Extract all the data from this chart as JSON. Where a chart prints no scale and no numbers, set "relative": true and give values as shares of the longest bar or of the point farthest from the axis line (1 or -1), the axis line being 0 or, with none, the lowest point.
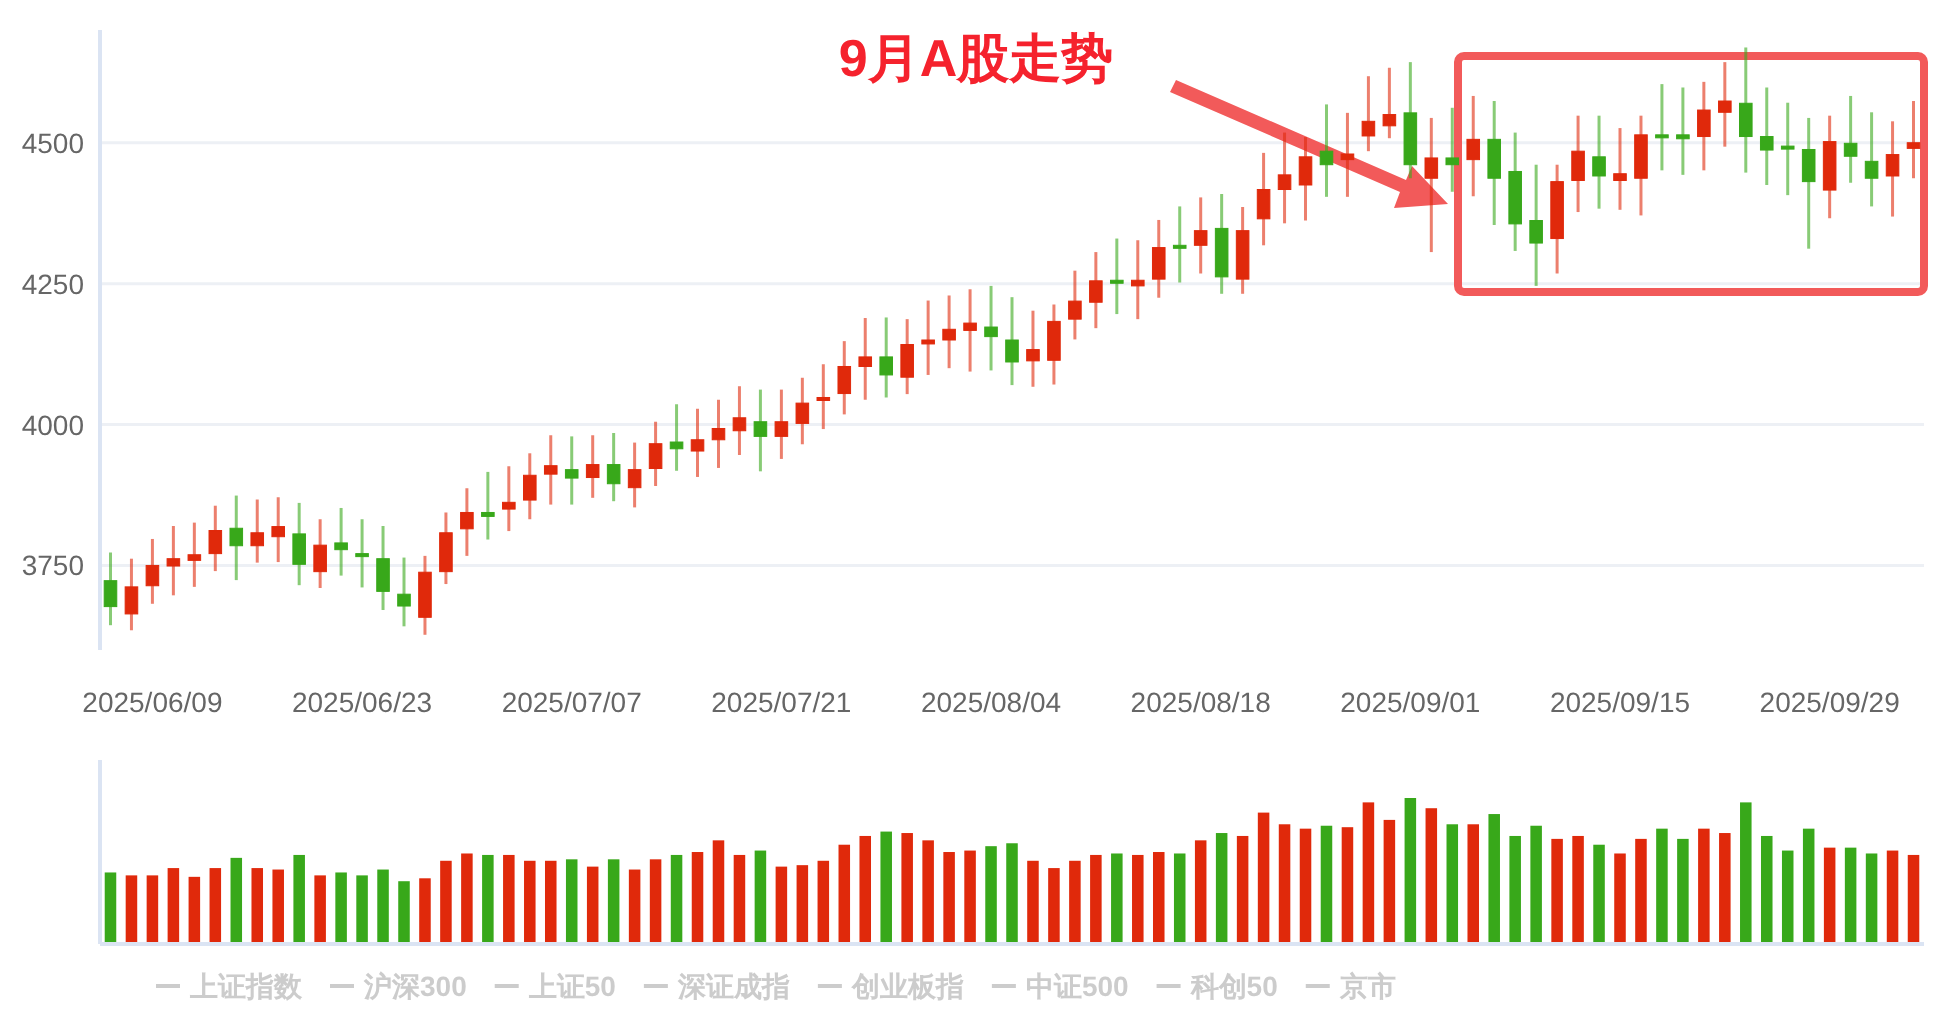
{
  "chart_data": [
    {
      "type": "candlestick",
      "categories": [
        null,
        null,
        "2025/06/09",
        null,
        null,
        null,
        null,
        null,
        null,
        null,
        null,
        null,
        "2025/06/23",
        null,
        null,
        null,
        null,
        null,
        null,
        null,
        null,
        null,
        "2025/07/07",
        null,
        null,
        null,
        null,
        null,
        null,
        null,
        null,
        null,
        "2025/07/21",
        null,
        null,
        null,
        null,
        null,
        null,
        null,
        null,
        null,
        "2025/08/04",
        null,
        null,
        null,
        null,
        null,
        null,
        null,
        null,
        null,
        "2025/08/18",
        null,
        null,
        null,
        null,
        null,
        null,
        null,
        null,
        null,
        "2025/09/01",
        null,
        null,
        null,
        null,
        null,
        null,
        null,
        null,
        null,
        "2025/09/15",
        null,
        null,
        null,
        null,
        null,
        null,
        null,
        null,
        null,
        "2025/09/29",
        null,
        null,
        null,
        null
      ],
      "ohlc": [
        [
          3723,
          3773,
          3644,
          3677
        ],
        [
          3664,
          3762,
          3635,
          3712
        ],
        [
          3714,
          3797,
          3682,
          3750
        ],
        [
          3749,
          3820,
          3697,
          3762
        ],
        [
          3759,
          3826,
          3712,
          3769
        ],
        [
          3771,
          3856,
          3740,
          3812
        ],
        [
          3816,
          3874,
          3724,
          3785
        ],
        [
          3785,
          3867,
          3755,
          3808
        ],
        [
          3801,
          3871,
          3756,
          3819
        ],
        [
          3806,
          3861,
          3715,
          3752
        ],
        [
          3739,
          3832,
          3710,
          3786
        ],
        [
          3790,
          3852,
          3732,
          3778
        ],
        [
          3771,
          3832,
          3711,
          3769
        ],
        [
          3762,
          3820,
          3671,
          3704
        ],
        [
          3699,
          3764,
          3642,
          3678
        ],
        [
          3658,
          3767,
          3627,
          3738
        ],
        [
          3739,
          3844,
          3717,
          3808
        ],
        [
          3815,
          3887,
          3767,
          3844
        ],
        [
          3844,
          3916,
          3796,
          3837
        ],
        [
          3850,
          3926,
          3811,
          3862
        ],
        [
          3866,
          3949,
          3832,
          3910
        ],
        [
          3912,
          3981,
          3858,
          3927
        ],
        [
          3920,
          3979,
          3858,
          3905
        ],
        [
          3906,
          3981,
          3870,
          3929
        ],
        [
          3929,
          3985,
          3864,
          3895
        ],
        [
          3888,
          3968,
          3853,
          3920
        ],
        [
          3922,
          4005,
          3891,
          3966
        ],
        [
          3969,
          4036,
          3918,
          3957
        ],
        [
          3953,
          4028,
          3907,
          3973
        ],
        [
          3973,
          4044,
          3923,
          3993
        ],
        [
          3989,
          4068,
          3946,
          4012
        ],
        [
          4005,
          4062,
          3917,
          3979
        ],
        [
          3979,
          4062,
          3939,
          4005
        ],
        [
          4002,
          4083,
          3965,
          4038
        ],
        [
          4043,
          4107,
          3992,
          4048
        ],
        [
          4055,
          4148,
          4018,
          4103
        ],
        [
          4103,
          4189,
          4044,
          4120
        ],
        [
          4120,
          4190,
          4048,
          4088
        ],
        [
          4084,
          4187,
          4054,
          4142
        ],
        [
          4143,
          4220,
          4088,
          4150
        ],
        [
          4150,
          4229,
          4100,
          4169
        ],
        [
          4167,
          4240,
          4094,
          4180
        ],
        [
          4173,
          4246,
          4096,
          4156
        ],
        [
          4150,
          4226,
          4070,
          4111
        ],
        [
          4113,
          4202,
          4067,
          4133
        ],
        [
          4114,
          4213,
          4071,
          4183
        ],
        [
          4187,
          4273,
          4151,
          4219
        ],
        [
          4217,
          4306,
          4171,
          4255
        ],
        [
          4256,
          4330,
          4196,
          4251
        ],
        [
          4246,
          4327,
          4187,
          4256
        ],
        [
          4258,
          4363,
          4225,
          4314
        ],
        [
          4318,
          4387,
          4252,
          4313
        ],
        [
          4318,
          4403,
          4268,
          4344
        ],
        [
          4348,
          4409,
          4232,
          4262
        ],
        [
          4258,
          4386,
          4232,
          4344
        ],
        [
          4365,
          4482,
          4318,
          4417
        ],
        [
          4417,
          4518,
          4357,
          4443
        ],
        [
          4425,
          4510,
          4362,
          4475
        ],
        [
          4485,
          4568,
          4404,
          4461
        ],
        [
          4470,
          4553,
          4404,
          4480
        ],
        [
          4512,
          4618,
          4485,
          4538
        ],
        [
          4530,
          4633,
          4508,
          4550
        ],
        [
          4553,
          4643,
          4437,
          4461
        ],
        [
          4437,
          4544,
          4306,
          4473
        ],
        [
          4473,
          4562,
          4413,
          4461
        ],
        [
          4470,
          4583,
          4405,
          4506
        ],
        [
          4506,
          4574,
          4354,
          4437
        ],
        [
          4449,
          4518,
          4308,
          4356
        ],
        [
          4362,
          4461,
          4246,
          4322
        ],
        [
          4330,
          4461,
          4268,
          4431
        ],
        [
          4433,
          4548,
          4377,
          4485
        ],
        [
          4475,
          4548,
          4383,
          4441
        ],
        [
          4433,
          4526,
          4381,
          4445
        ],
        [
          4437,
          4548,
          4371,
          4514
        ],
        [
          4514,
          4604,
          4451,
          4510
        ],
        [
          4514,
          4598,
          4443,
          4507
        ],
        [
          4511,
          4608,
          4451,
          4558
        ],
        [
          4554,
          4643,
          4493,
          4574
        ],
        [
          4570,
          4669,
          4447,
          4511
        ],
        [
          4511,
          4598,
          4425,
          4487
        ],
        [
          4494,
          4571,
          4407,
          4491
        ],
        [
          4488,
          4544,
          4312,
          4431
        ],
        [
          4416,
          4548,
          4366,
          4502
        ],
        [
          4499,
          4583,
          4429,
          4476
        ],
        [
          4467,
          4554,
          4387,
          4437
        ],
        [
          4441,
          4538,
          4369,
          4479
        ],
        [
          4490,
          4574,
          4437,
          4500
        ]
      ],
      "colors": [
        "#38a81a",
        "#e0290b",
        "#e0290b",
        "#e0290b",
        "#e0290b",
        "#e0290b",
        "#38a81a",
        "#e0290b",
        "#e0290b",
        "#38a81a",
        "#e0290b",
        "#38a81a",
        "#38a81a",
        "#38a81a",
        "#38a81a",
        "#e0290b",
        "#e0290b",
        "#e0290b",
        "#38a81a",
        "#e0290b",
        "#e0290b",
        "#e0290b",
        "#38a81a",
        "#e0290b",
        "#38a81a",
        "#e0290b",
        "#e0290b",
        "#38a81a",
        "#e0290b",
        "#e0290b",
        "#e0290b",
        "#38a81a",
        "#e0290b",
        "#e0290b",
        "#e0290b",
        "#e0290b",
        "#e0290b",
        "#38a81a",
        "#e0290b",
        "#e0290b",
        "#e0290b",
        "#e0290b",
        "#38a81a",
        "#38a81a",
        "#e0290b",
        "#e0290b",
        "#e0290b",
        "#e0290b",
        "#38a81a",
        "#e0290b",
        "#e0290b",
        "#38a81a",
        "#e0290b",
        "#38a81a",
        "#e0290b",
        "#e0290b",
        "#e0290b",
        "#e0290b",
        "#38a81a",
        "#e0290b",
        "#e0290b",
        "#e0290b",
        "#38a81a",
        "#e0290b",
        "#38a81a",
        "#e0290b",
        "#38a81a",
        "#38a81a",
        "#38a81a",
        "#e0290b",
        "#e0290b",
        "#38a81a",
        "#e0290b",
        "#e0290b",
        "#38a81a",
        "#38a81a",
        "#e0290b",
        "#e0290b",
        "#38a81a",
        "#38a81a",
        "#38a81a",
        "#38a81a",
        "#e0290b",
        "#38a81a",
        "#38a81a",
        "#e0290b",
        "#e0290b"
      ],
      "ylim": [
        3600,
        4700
      ],
      "yticks": [
        3750,
        4000,
        4250,
        4500
      ],
      "grid": "y",
      "annotations": [
        "9月A股走势"
      ],
      "series": [
        {
          "name": "上证指数",
          "color": "#cccccc",
          "type": "line",
          "values": [
            null,
            null,
            null,
            null,
            null,
            null,
            null,
            null,
            null,
            null,
            null,
            null,
            null,
            null,
            null,
            null,
            null,
            null,
            null,
            null,
            null,
            null,
            null,
            null,
            null,
            null,
            null,
            null,
            null,
            null,
            null,
            null,
            null,
            null,
            null,
            null,
            null,
            null,
            null,
            null,
            null,
            null,
            null,
            null,
            null,
            null,
            null,
            null,
            null,
            null,
            null,
            null,
            null,
            null,
            null,
            null,
            null,
            null,
            null,
            null,
            null,
            null,
            null,
            null,
            null,
            null,
            null,
            null,
            null,
            null,
            null,
            null,
            null,
            null,
            null,
            null,
            null,
            null,
            null,
            null,
            null,
            null,
            null,
            null,
            null,
            null,
            null
          ]
        },
        {
          "name": "沪深300",
          "color": "#cccccc",
          "type": "line",
          "values": [
            null,
            null,
            null,
            null,
            null,
            null,
            null,
            null,
            null,
            null,
            null,
            null,
            null,
            null,
            null,
            null,
            null,
            null,
            null,
            null,
            null,
            null,
            null,
            null,
            null,
            null,
            null,
            null,
            null,
            null,
            null,
            null,
            null,
            null,
            null,
            null,
            null,
            null,
            null,
            null,
            null,
            null,
            null,
            null,
            null,
            null,
            null,
            null,
            null,
            null,
            null,
            null,
            null,
            null,
            null,
            null,
            null,
            null,
            null,
            null,
            null,
            null,
            null,
            null,
            null,
            null,
            null,
            null,
            null,
            null,
            null,
            null,
            null,
            null,
            null,
            null,
            null,
            null,
            null,
            null,
            null,
            null,
            null,
            null,
            null,
            null,
            null
          ]
        },
        {
          "name": "上证50",
          "color": "#cccccc",
          "type": "line",
          "values": [
            null,
            null,
            null,
            null,
            null,
            null,
            null,
            null,
            null,
            null,
            null,
            null,
            null,
            null,
            null,
            null,
            null,
            null,
            null,
            null,
            null,
            null,
            null,
            null,
            null,
            null,
            null,
            null,
            null,
            null,
            null,
            null,
            null,
            null,
            null,
            null,
            null,
            null,
            null,
            null,
            null,
            null,
            null,
            null,
            null,
            null,
            null,
            null,
            null,
            null,
            null,
            null,
            null,
            null,
            null,
            null,
            null,
            null,
            null,
            null,
            null,
            null,
            null,
            null,
            null,
            null,
            null,
            null,
            null,
            null,
            null,
            null,
            null,
            null,
            null,
            null,
            null,
            null,
            null,
            null,
            null,
            null,
            null,
            null,
            null,
            null,
            null
          ]
        },
        {
          "name": "深证成指",
          "color": "#cccccc",
          "type": "line",
          "values": [
            null,
            null,
            null,
            null,
            null,
            null,
            null,
            null,
            null,
            null,
            null,
            null,
            null,
            null,
            null,
            null,
            null,
            null,
            null,
            null,
            null,
            null,
            null,
            null,
            null,
            null,
            null,
            null,
            null,
            null,
            null,
            null,
            null,
            null,
            null,
            null,
            null,
            null,
            null,
            null,
            null,
            null,
            null,
            null,
            null,
            null,
            null,
            null,
            null,
            null,
            null,
            null,
            null,
            null,
            null,
            null,
            null,
            null,
            null,
            null,
            null,
            null,
            null,
            null,
            null,
            null,
            null,
            null,
            null,
            null,
            null,
            null,
            null,
            null,
            null,
            null,
            null,
            null,
            null,
            null,
            null,
            null,
            null,
            null,
            null,
            null,
            null
          ]
        },
        {
          "name": "创业板指",
          "color": "#cccccc",
          "type": "line",
          "values": [
            null,
            null,
            null,
            null,
            null,
            null,
            null,
            null,
            null,
            null,
            null,
            null,
            null,
            null,
            null,
            null,
            null,
            null,
            null,
            null,
            null,
            null,
            null,
            null,
            null,
            null,
            null,
            null,
            null,
            null,
            null,
            null,
            null,
            null,
            null,
            null,
            null,
            null,
            null,
            null,
            null,
            null,
            null,
            null,
            null,
            null,
            null,
            null,
            null,
            null,
            null,
            null,
            null,
            null,
            null,
            null,
            null,
            null,
            null,
            null,
            null,
            null,
            null,
            null,
            null,
            null,
            null,
            null,
            null,
            null,
            null,
            null,
            null,
            null,
            null,
            null,
            null,
            null,
            null,
            null,
            null,
            null,
            null,
            null,
            null,
            null,
            null
          ]
        },
        {
          "name": "中证500",
          "color": "#cccccc",
          "type": "line",
          "values": [
            null,
            null,
            null,
            null,
            null,
            null,
            null,
            null,
            null,
            null,
            null,
            null,
            null,
            null,
            null,
            null,
            null,
            null,
            null,
            null,
            null,
            null,
            null,
            null,
            null,
            null,
            null,
            null,
            null,
            null,
            null,
            null,
            null,
            null,
            null,
            null,
            null,
            null,
            null,
            null,
            null,
            null,
            null,
            null,
            null,
            null,
            null,
            null,
            null,
            null,
            null,
            null,
            null,
            null,
            null,
            null,
            null,
            null,
            null,
            null,
            null,
            null,
            null,
            null,
            null,
            null,
            null,
            null,
            null,
            null,
            null,
            null,
            null,
            null,
            null,
            null,
            null,
            null,
            null,
            null,
            null,
            null,
            null,
            null,
            null,
            null,
            null
          ]
        },
        {
          "name": "科创50",
          "color": "#cccccc",
          "type": "line",
          "values": [
            null,
            null,
            null,
            null,
            null,
            null,
            null,
            null,
            null,
            null,
            null,
            null,
            null,
            null,
            null,
            null,
            null,
            null,
            null,
            null,
            null,
            null,
            null,
            null,
            null,
            null,
            null,
            null,
            null,
            null,
            null,
            null,
            null,
            null,
            null,
            null,
            null,
            null,
            null,
            null,
            null,
            null,
            null,
            null,
            null,
            null,
            null,
            null,
            null,
            null,
            null,
            null,
            null,
            null,
            null,
            null,
            null,
            null,
            null,
            null,
            null,
            null,
            null,
            null,
            null,
            null,
            null,
            null,
            null,
            null,
            null,
            null,
            null,
            null,
            null,
            null,
            null,
            null,
            null,
            null,
            null,
            null,
            null,
            null,
            null,
            null,
            null
          ]
        },
        {
          "name": "京市",
          "color": "#cccccc",
          "type": "line",
          "values": [
            null,
            null,
            null,
            null,
            null,
            null,
            null,
            null,
            null,
            null,
            null,
            null,
            null,
            null,
            null,
            null,
            null,
            null,
            null,
            null,
            null,
            null,
            null,
            null,
            null,
            null,
            null,
            null,
            null,
            null,
            null,
            null,
            null,
            null,
            null,
            null,
            null,
            null,
            null,
            null,
            null,
            null,
            null,
            null,
            null,
            null,
            null,
            null,
            null,
            null,
            null,
            null,
            null,
            null,
            null,
            null,
            null,
            null,
            null,
            null,
            null,
            null,
            null,
            null,
            null,
            null,
            null,
            null,
            null,
            null,
            null,
            null,
            null,
            null,
            null,
            null,
            null,
            null,
            null,
            null,
            null,
            null,
            null,
            null,
            null,
            null,
            null
          ]
        }
      ],
      "legend": "bottom"
    },
    {
      "type": "bar",
      "relative": true,
      "categories": [
        null,
        null,
        null,
        null,
        null,
        null,
        null,
        null,
        null,
        null,
        null,
        null,
        null,
        null,
        null,
        null,
        null,
        null,
        null,
        null,
        null,
        null,
        null,
        null,
        null,
        null,
        null,
        null,
        null,
        null,
        null,
        null,
        null,
        null,
        null,
        null,
        null,
        null,
        null,
        null,
        null,
        null,
        null,
        null,
        null,
        null,
        null,
        null,
        null,
        null,
        null,
        null,
        null,
        null,
        null,
        null,
        null,
        null,
        null,
        null,
        null,
        null,
        null,
        null,
        null,
        null,
        null,
        null,
        null,
        null,
        null,
        null,
        null,
        null,
        null,
        null,
        null,
        null,
        null,
        null,
        null,
        null,
        null,
        null,
        null,
        null,
        null
      ],
      "values": [
        0.49,
        0.47,
        0.47,
        0.52,
        0.46,
        0.52,
        0.59,
        0.52,
        0.51,
        0.61,
        0.47,
        0.49,
        0.47,
        0.51,
        0.43,
        0.45,
        0.57,
        0.62,
        0.61,
        0.61,
        0.57,
        0.57,
        0.58,
        0.53,
        0.58,
        0.51,
        0.58,
        0.61,
        0.63,
        0.71,
        0.61,
        0.64,
        0.53,
        0.54,
        0.57,
        0.68,
        0.74,
        0.77,
        0.76,
        0.71,
        0.63,
        0.64,
        0.67,
        0.69,
        0.57,
        0.52,
        0.57,
        0.61,
        0.62,
        0.61,
        0.63,
        0.62,
        0.71,
        0.76,
        0.74,
        0.9,
        0.82,
        0.79,
        0.81,
        0.8,
        0.97,
        0.85,
        1,
        0.93,
        0.82,
        0.82,
        0.89,
        0.74,
        0.81,
        0.72,
        0.74,
        0.68,
        0.62,
        0.72,
        0.79,
        0.72,
        0.79,
        0.76,
        0.97,
        0.74,
        0.64,
        0.79,
        0.66,
        0.66,
        0.62,
        0.64,
        0.61
      ],
      "colors": [
        "#38a81a",
        "#e0290b",
        "#e0290b",
        "#e0290b",
        "#e0290b",
        "#e0290b",
        "#38a81a",
        "#e0290b",
        "#e0290b",
        "#38a81a",
        "#e0290b",
        "#38a81a",
        "#38a81a",
        "#38a81a",
        "#38a81a",
        "#e0290b",
        "#e0290b",
        "#e0290b",
        "#38a81a",
        "#e0290b",
        "#e0290b",
        "#e0290b",
        "#38a81a",
        "#e0290b",
        "#38a81a",
        "#e0290b",
        "#e0290b",
        "#38a81a",
        "#e0290b",
        "#e0290b",
        "#e0290b",
        "#38a81a",
        "#e0290b",
        "#e0290b",
        "#e0290b",
        "#e0290b",
        "#e0290b",
        "#38a81a",
        "#e0290b",
        "#e0290b",
        "#e0290b",
        "#e0290b",
        "#38a81a",
        "#38a81a",
        "#e0290b",
        "#e0290b",
        "#e0290b",
        "#e0290b",
        "#38a81a",
        "#e0290b",
        "#e0290b",
        "#38a81a",
        "#e0290b",
        "#38a81a",
        "#e0290b",
        "#e0290b",
        "#e0290b",
        "#e0290b",
        "#38a81a",
        "#e0290b",
        "#e0290b",
        "#e0290b",
        "#38a81a",
        "#e0290b",
        "#38a81a",
        "#e0290b",
        "#38a81a",
        "#38a81a",
        "#38a81a",
        "#e0290b",
        "#e0290b",
        "#38a81a",
        "#e0290b",
        "#e0290b",
        "#38a81a",
        "#38a81a",
        "#e0290b",
        "#e0290b",
        "#38a81a",
        "#38a81a",
        "#38a81a",
        "#38a81a",
        "#e0290b",
        "#38a81a",
        "#38a81a",
        "#e0290b",
        "#e0290b"
      ]
    }
  ]
}
